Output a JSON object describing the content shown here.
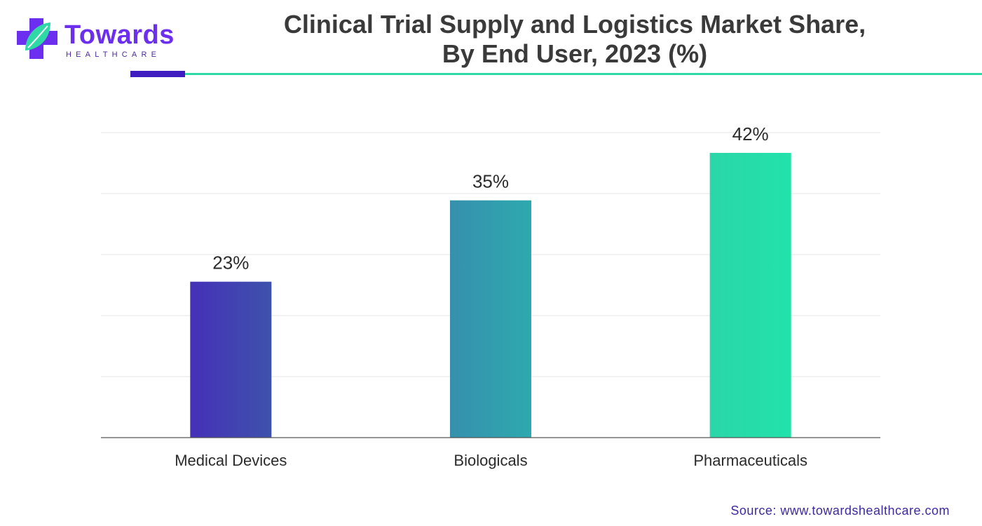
{
  "header": {
    "title_line1": "Clinical Trial Supply and Logistics Market Share,",
    "title_line2": "By End User, 2023 (%)",
    "logo": {
      "word": "Towards",
      "sub": "HEALTHCARE"
    }
  },
  "footer": {
    "source": "Source: www.towardshealthcare.com"
  },
  "colors": {
    "accent_purple": "#3f1cc0",
    "accent_green": "#2fd9a6",
    "bar_gradients": [
      [
        "#4630b8",
        "#3e52ac"
      ],
      [
        "#3690ad",
        "#2ea9af"
      ],
      [
        "#2bd6a8",
        "#22e2aa"
      ]
    ],
    "grid": "#e6e6e6",
    "axis": "#555555",
    "text": "#2b2b2b"
  },
  "chart_data": {
    "type": "bar",
    "categories": [
      "Medical Devices",
      "Biologicals",
      "Pharmaceuticals"
    ],
    "values": [
      23,
      35,
      42
    ],
    "value_labels": [
      "23%",
      "35%",
      "42%"
    ],
    "title": "Clinical Trial Supply and Logistics Market Share, By End User, 2023 (%)",
    "xlabel": "",
    "ylabel": "",
    "ylim": [
      0,
      45
    ],
    "grid": true,
    "legend": "none"
  }
}
